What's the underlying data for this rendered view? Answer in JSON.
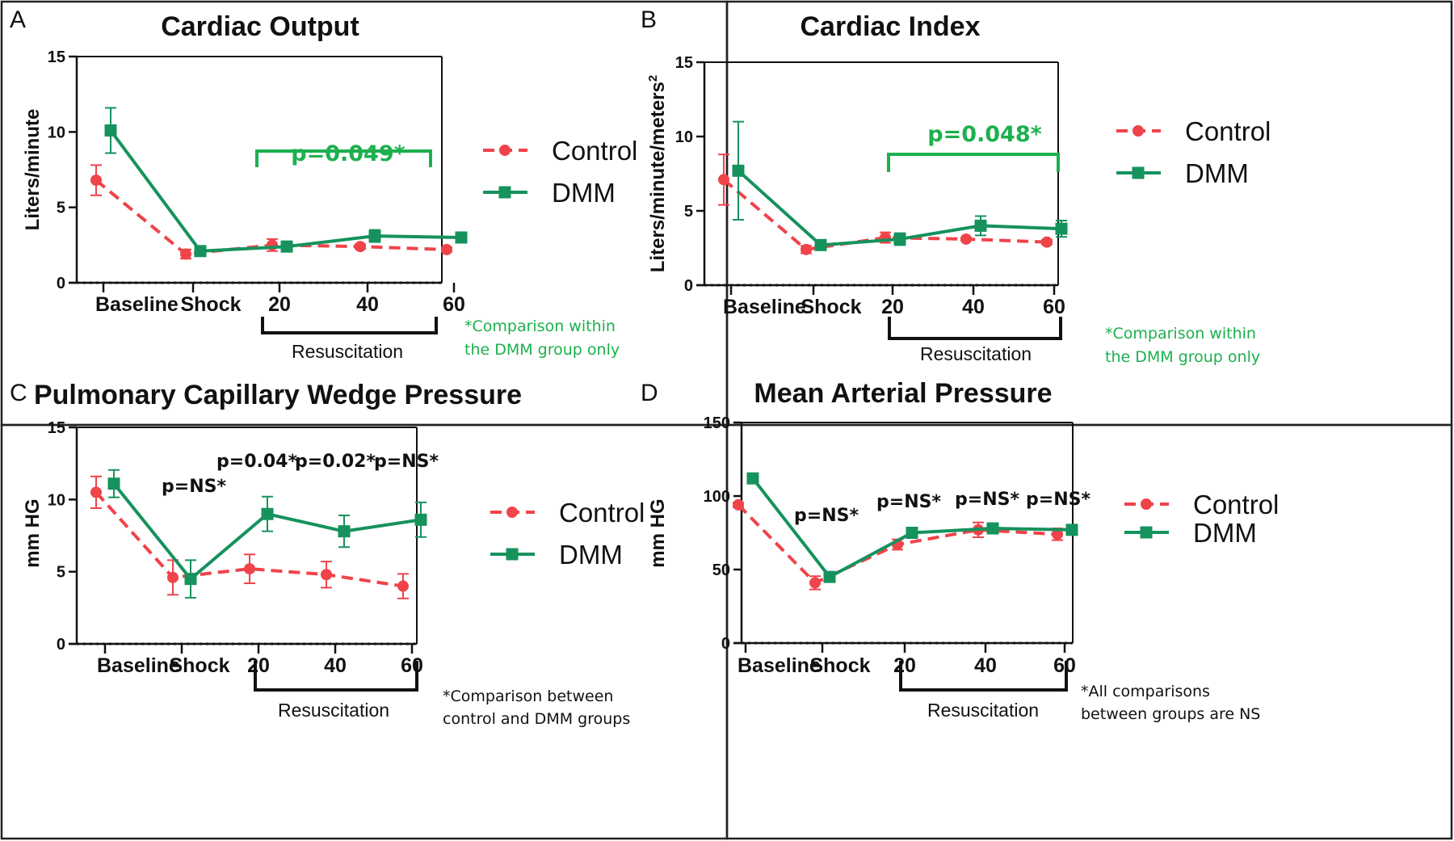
{
  "figure": {
    "colors": {
      "control": "#f0434a",
      "dmm": "#16925d",
      "annotation_green": "#1cb04e",
      "axis": "#111111"
    },
    "legend": {
      "control": "Control",
      "dmm": "DMM"
    },
    "resuscitation_label": "Resuscitation"
  },
  "chart_data": [
    {
      "panel": "A",
      "type": "line",
      "title": "Cardiac Output",
      "xlabel": "",
      "ylabel": "Liters/minute",
      "categories": [
        "Baseline",
        "Shock",
        "20",
        "40",
        "60"
      ],
      "ylim": [
        0,
        15
      ],
      "yticks": [
        0,
        5,
        10,
        15
      ],
      "series": [
        {
          "name": "Control",
          "values": [
            6.8,
            1.9,
            2.5,
            2.4,
            2.2
          ],
          "errors": [
            1.0,
            0.3,
            0.4,
            0.15,
            0.15
          ]
        },
        {
          "name": "DMM",
          "values": [
            10.1,
            2.1,
            2.4,
            3.1,
            3.0
          ],
          "errors": [
            1.5,
            0.2,
            0.2,
            0.4,
            0.3
          ]
        }
      ],
      "annotations": {
        "significance": {
          "text": "p=0.049*",
          "from": "20",
          "to": "60"
        },
        "footnote": [
          "*Comparison within",
          "the DMM group only"
        ],
        "footnote_color": "green"
      },
      "legend_position": "right"
    },
    {
      "panel": "B",
      "type": "line",
      "title": "Cardiac Index",
      "xlabel": "",
      "ylabel": "Liters/minute/meters",
      "ylabel_superscript": "2",
      "categories": [
        "Baseline",
        "Shock",
        "20",
        "40",
        "60"
      ],
      "ylim": [
        0,
        15
      ],
      "yticks": [
        0,
        5,
        10,
        15
      ],
      "series": [
        {
          "name": "Control",
          "values": [
            7.1,
            2.4,
            3.2,
            3.1,
            2.9
          ],
          "errors": [
            1.7,
            0.25,
            0.35,
            0.1,
            0.15
          ]
        },
        {
          "name": "DMM",
          "values": [
            7.7,
            2.7,
            3.1,
            4.0,
            3.8
          ],
          "errors": [
            3.3,
            0.15,
            0.4,
            0.65,
            0.55
          ]
        }
      ],
      "annotations": {
        "significance": {
          "text": "p=0.048*",
          "from": "20",
          "to": "60"
        },
        "footnote": [
          "*Comparison within",
          "the DMM group only"
        ],
        "footnote_color": "green"
      },
      "legend_position": "right"
    },
    {
      "panel": "C",
      "type": "line",
      "title": "Pulmonary Capillary Wedge Pressure",
      "xlabel": "",
      "ylabel": "mm HG",
      "categories": [
        "Baseline",
        "Shock",
        "20",
        "40",
        "60"
      ],
      "ylim": [
        0,
        15
      ],
      "yticks": [
        0,
        5,
        10,
        15
      ],
      "series": [
        {
          "name": "Control",
          "values": [
            10.5,
            4.6,
            5.2,
            4.8,
            4.0
          ],
          "errors": [
            1.1,
            1.2,
            1.0,
            0.9,
            0.85
          ]
        },
        {
          "name": "DMM",
          "values": [
            11.1,
            4.5,
            9.0,
            7.8,
            8.6
          ],
          "errors": [
            0.95,
            1.3,
            1.2,
            1.1,
            1.2
          ]
        }
      ],
      "annotations": {
        "p_values": [
          "",
          "p=NS*",
          "p=0.04*",
          "p=0.02*",
          "p=NS*"
        ],
        "footnote": [
          "*Comparison between",
          "control and DMM groups"
        ],
        "footnote_color": "black"
      },
      "legend_position": "right"
    },
    {
      "panel": "D",
      "type": "line",
      "title": "Mean Arterial Pressure",
      "xlabel": "",
      "ylabel": "mm HG",
      "categories": [
        "Baseline",
        "Shock",
        "20",
        "40",
        "60"
      ],
      "ylim": [
        0,
        150
      ],
      "yticks": [
        0,
        50,
        100,
        150
      ],
      "series": [
        {
          "name": "Control",
          "values": [
            94,
            41,
            67,
            77,
            74
          ],
          "errors": [
            1.5,
            4.5,
            3.5,
            5,
            4
          ]
        },
        {
          "name": "DMM",
          "values": [
            112,
            45,
            75,
            78,
            77
          ],
          "errors": [
            3,
            2,
            2,
            2,
            2
          ]
        }
      ],
      "annotations": {
        "p_values": [
          "",
          "p=NS*",
          "p=NS*",
          "p=NS*",
          "p=NS*"
        ],
        "footnote": [
          "*All comparisons",
          "between groups are NS"
        ],
        "footnote_color": "black"
      },
      "legend_position": "right"
    }
  ]
}
